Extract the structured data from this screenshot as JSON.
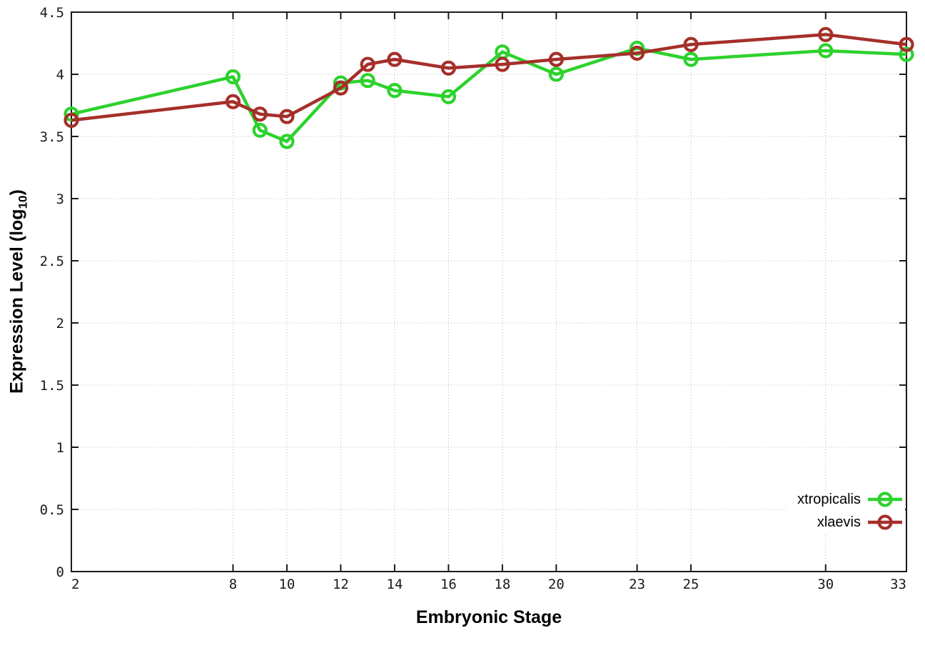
{
  "chart_data": {
    "type": "line",
    "title": "",
    "xlabel": "Embryonic Stage",
    "ylabel": "Expression Level (log10)",
    "ylabel_parts": {
      "main": "Expression Level (log",
      "sub": "10",
      "close": ")"
    },
    "x": [
      2,
      8,
      9,
      10,
      12,
      13,
      14,
      16,
      18,
      20,
      23,
      25,
      30,
      33
    ],
    "series": [
      {
        "name": "xtropicalis",
        "color": "#2dd22d",
        "values": [
          3.68,
          3.98,
          3.55,
          3.46,
          3.93,
          3.95,
          3.87,
          3.82,
          4.18,
          4.0,
          4.21,
          4.12,
          4.19,
          4.16
        ]
      },
      {
        "name": "xlaevis",
        "color": "#a52f2a",
        "values": [
          3.63,
          3.78,
          3.68,
          3.66,
          3.89,
          4.08,
          4.12,
          4.05,
          4.08,
          4.12,
          4.17,
          4.24,
          4.32,
          4.24
        ]
      }
    ],
    "xlim": [
      2,
      33
    ],
    "ylim": [
      0,
      4.5
    ],
    "x_ticks": [
      {
        "value": 2,
        "label": "2"
      },
      {
        "value": 8,
        "label": "8"
      },
      {
        "value": 10,
        "label": "10"
      },
      {
        "value": 12,
        "label": "12"
      },
      {
        "value": 14,
        "label": "14"
      },
      {
        "value": 16,
        "label": "16"
      },
      {
        "value": 18,
        "label": "18"
      },
      {
        "value": 20,
        "label": "20"
      },
      {
        "value": 23,
        "label": "23"
      },
      {
        "value": 25,
        "label": "25"
      },
      {
        "value": 30,
        "label": "30"
      },
      {
        "value": 33,
        "label": "33"
      }
    ],
    "y_ticks": [
      {
        "value": 0,
        "label": "0"
      },
      {
        "value": 0.5,
        "label": "0.5"
      },
      {
        "value": 1,
        "label": "1"
      },
      {
        "value": 1.5,
        "label": "1.5"
      },
      {
        "value": 2,
        "label": "2"
      },
      {
        "value": 2.5,
        "label": "2.5"
      },
      {
        "value": 3,
        "label": "3"
      },
      {
        "value": 3.5,
        "label": "3.5"
      },
      {
        "value": 4,
        "label": "4"
      },
      {
        "value": 4.5,
        "label": "4.5"
      }
    ],
    "grid": true,
    "legend_position": "bottom-right",
    "marker": "open-circle",
    "colors": {
      "xtropicalis": "#2dd22d",
      "xlaevis": "#a52f2a",
      "grid": "#b3b3b3",
      "axis": "#1a1a1a",
      "tick_text": "#1a1a1a",
      "background": "#ffffff"
    }
  }
}
